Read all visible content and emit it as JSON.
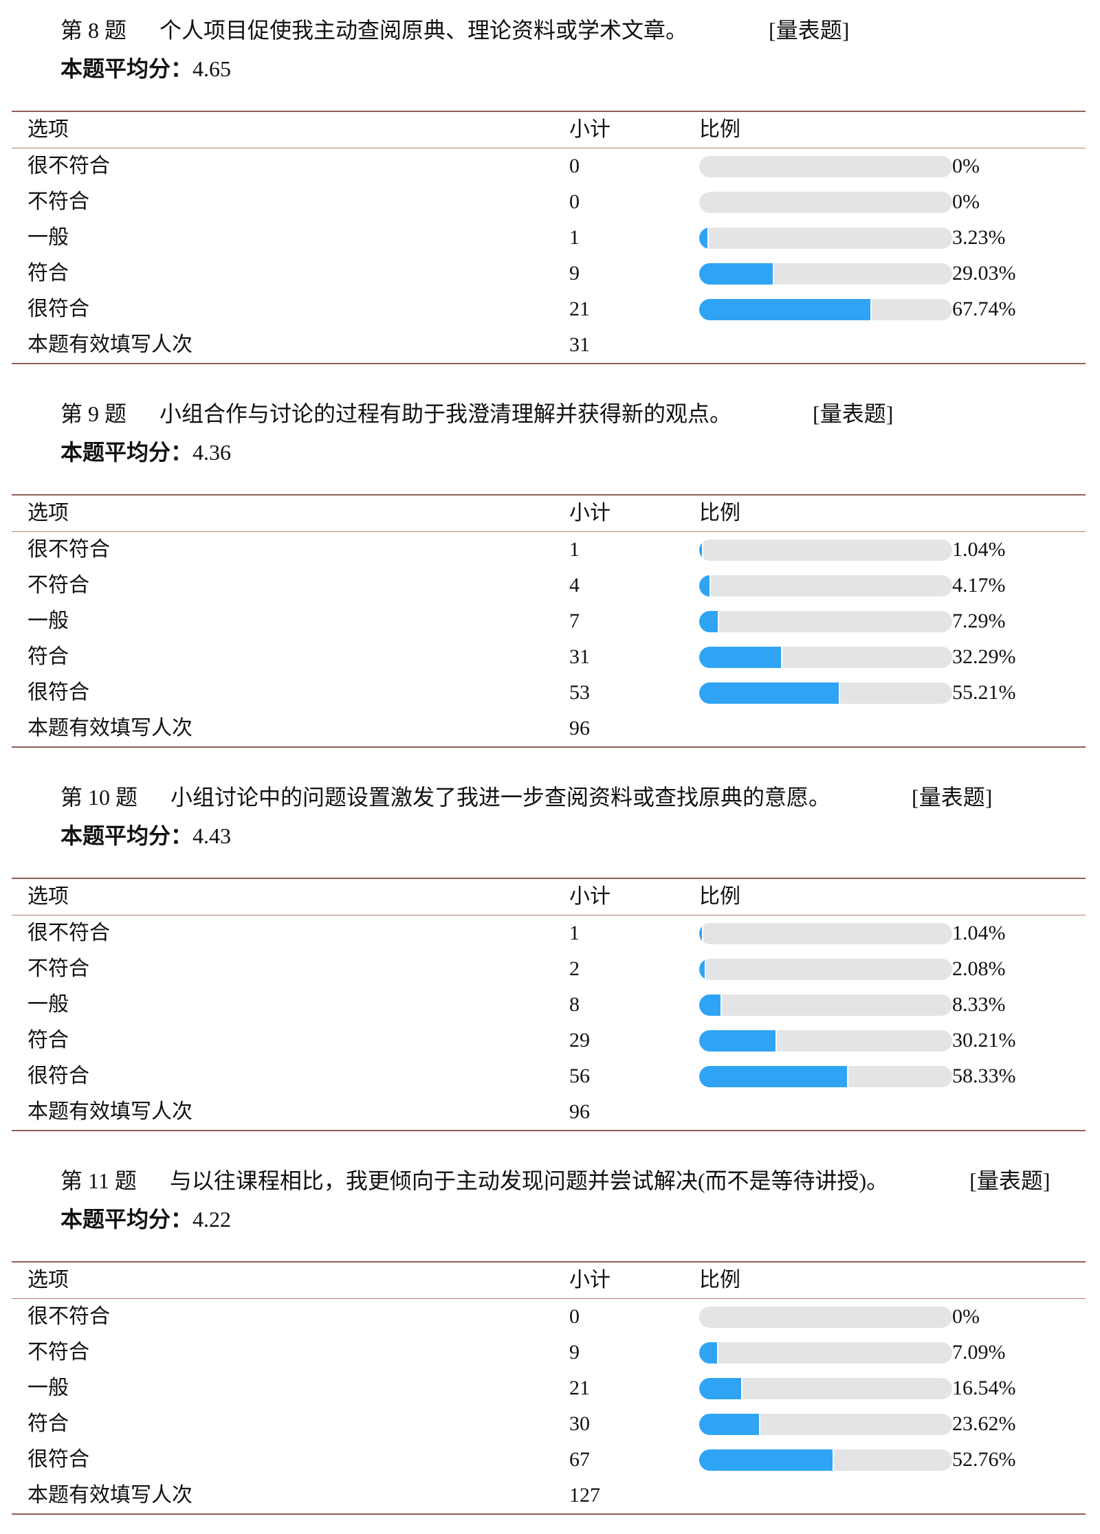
{
  "labels": {
    "avg": "本题平均分：",
    "col_option": "选项",
    "col_count": "小计",
    "col_ratio": "比例",
    "total": "本题有效填写人次",
    "type": "[量表题]"
  },
  "colors": {
    "bar_fill": "#2fa4f5",
    "bar_track": "#e3e4e6",
    "border": "#8f5f5a"
  },
  "questions": [
    {
      "number": "第 8 题",
      "text": "个人项目促使我主动查阅原典、理论资料或学术文章。",
      "type": "[量表题]",
      "avg": "4.65",
      "rows": [
        {
          "option": "很不符合",
          "count": "0",
          "percent": "0%",
          "value": 0
        },
        {
          "option": "不符合",
          "count": "0",
          "percent": "0%",
          "value": 0
        },
        {
          "option": "一般",
          "count": "1",
          "percent": "3.23%",
          "value": 3.23
        },
        {
          "option": "符合",
          "count": "9",
          "percent": "29.03%",
          "value": 29.03
        },
        {
          "option": "很符合",
          "count": "21",
          "percent": "67.74%",
          "value": 67.74
        }
      ],
      "total": "31"
    },
    {
      "number": "第 9 题",
      "text": "小组合作与讨论的过程有助于我澄清理解并获得新的观点。",
      "type": "[量表题]",
      "avg": "4.36",
      "rows": [
        {
          "option": "很不符合",
          "count": "1",
          "percent": "1.04%",
          "value": 1.04
        },
        {
          "option": "不符合",
          "count": "4",
          "percent": "4.17%",
          "value": 4.17
        },
        {
          "option": "一般",
          "count": "7",
          "percent": "7.29%",
          "value": 7.29
        },
        {
          "option": "符合",
          "count": "31",
          "percent": "32.29%",
          "value": 32.29
        },
        {
          "option": "很符合",
          "count": "53",
          "percent": "55.21%",
          "value": 55.21
        }
      ],
      "total": "96"
    },
    {
      "number": "第 10 题",
      "text": "小组讨论中的问题设置激发了我进一步查阅资料或查找原典的意愿。",
      "type": "[量表题]",
      "avg": "4.43",
      "rows": [
        {
          "option": "很不符合",
          "count": "1",
          "percent": "1.04%",
          "value": 1.04
        },
        {
          "option": "不符合",
          "count": "2",
          "percent": "2.08%",
          "value": 2.08
        },
        {
          "option": "一般",
          "count": "8",
          "percent": "8.33%",
          "value": 8.33
        },
        {
          "option": "符合",
          "count": "29",
          "percent": "30.21%",
          "value": 30.21
        },
        {
          "option": "很符合",
          "count": "56",
          "percent": "58.33%",
          "value": 58.33
        }
      ],
      "total": "96"
    },
    {
      "number": "第 11 题",
      "text": "与以往课程相比，我更倾向于主动发现问题并尝试解决(而不是等待讲授)。",
      "type": "[量表题]",
      "avg": "4.22",
      "rows": [
        {
          "option": "很不符合",
          "count": "0",
          "percent": "0%",
          "value": 0
        },
        {
          "option": "不符合",
          "count": "9",
          "percent": "7.09%",
          "value": 7.09
        },
        {
          "option": "一般",
          "count": "21",
          "percent": "16.54%",
          "value": 16.54
        },
        {
          "option": "符合",
          "count": "30",
          "percent": "23.62%",
          "value": 23.62
        },
        {
          "option": "很符合",
          "count": "67",
          "percent": "52.76%",
          "value": 52.76
        }
      ],
      "total": "127"
    }
  ]
}
